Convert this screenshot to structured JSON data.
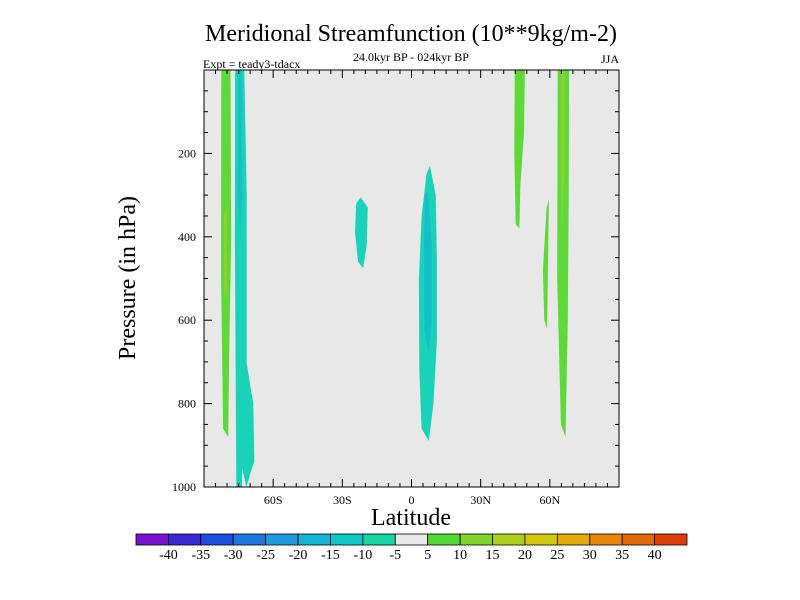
{
  "chart_data": {
    "type": "heatmap",
    "title": "Meridional Streamfunction (10**9kg/m-2)",
    "subtitle": "24.0kyr BP - 024kyr BP",
    "left_label": "Expt = teady3-tdacx",
    "right_label": "JJA",
    "xlabel": "Latitude",
    "ylabel": "Pressure (in hPa)",
    "xlim": [
      -90,
      90
    ],
    "ylim": [
      1000,
      0
    ],
    "x_ticks": [
      {
        "value": -60,
        "label": "60S"
      },
      {
        "value": -30,
        "label": "30S"
      },
      {
        "value": 0,
        "label": "0"
      },
      {
        "value": 30,
        "label": "30N"
      },
      {
        "value": 60,
        "label": "60N"
      }
    ],
    "y_ticks": [
      {
        "value": 200,
        "label": "200"
      },
      {
        "value": 400,
        "label": "400"
      },
      {
        "value": 600,
        "label": "600"
      },
      {
        "value": 800,
        "label": "800"
      },
      {
        "value": 1000,
        "label": "1000"
      }
    ],
    "background_level": "-5 to 5",
    "colorbar": {
      "levels": [
        -40,
        -35,
        -30,
        -25,
        -20,
        -15,
        -10,
        -5,
        5,
        10,
        15,
        20,
        25,
        30,
        35,
        40
      ],
      "labels": [
        "-40",
        "-35",
        "-30",
        "-25",
        "-20",
        "-15",
        "-10",
        "-5",
        "5",
        "10",
        "15",
        "20",
        "25",
        "30",
        "35",
        "40"
      ],
      "colors": [
        "#7a12cf",
        "#3a2ad6",
        "#1e4ee0",
        "#1f76e0",
        "#1f9ade",
        "#14b4d6",
        "#0cc8c8",
        "#18d4a4",
        "#e8e8e8",
        "#52d834",
        "#80d428",
        "#aed018",
        "#d4c80c",
        "#e4ac08",
        "#e68806",
        "#e46808",
        "#e03c08"
      ]
    },
    "features": [
      {
        "name": "sh-polar-positive-cell",
        "class": "5 to 10",
        "color": "#5fd83a",
        "points": [
          [
            -82.5,
            0
          ],
          [
            -78.5,
            0
          ],
          [
            -78.2,
            400
          ],
          [
            -79,
            650
          ],
          [
            -79.5,
            880
          ],
          [
            -81.7,
            860
          ],
          [
            -82.6,
            500
          ]
        ]
      },
      {
        "name": "sh-polar-inner-positive",
        "class": "10 to 15",
        "color": "#8ad42c",
        "points": [
          [
            -81.5,
            350
          ],
          [
            -80.2,
            330
          ],
          [
            -80,
            520
          ],
          [
            -81.2,
            560
          ]
        ]
      },
      {
        "name": "sh-negative-column-upper",
        "class": "-10 to -5",
        "color": "#1ad2b8",
        "points": [
          [
            -76.5,
            0
          ],
          [
            -72.5,
            0
          ],
          [
            -71.5,
            300
          ],
          [
            -71.5,
            700
          ],
          [
            -73.2,
            680
          ],
          [
            -73.5,
            1000
          ],
          [
            -76,
            1000
          ],
          [
            -76.6,
            400
          ]
        ]
      },
      {
        "name": "sh-negative-column-lower",
        "class": "-10 to -5",
        "color": "#1ad2b8",
        "points": [
          [
            -75.5,
            640
          ],
          [
            -72.8,
            660
          ],
          [
            -68.6,
            800
          ],
          [
            -68.2,
            940
          ],
          [
            -69.5,
            960
          ],
          [
            -71.6,
            1000
          ],
          [
            -74.5,
            930
          ],
          [
            -75.8,
            880
          ]
        ]
      },
      {
        "name": "sh-negative-column-core",
        "class": "-15 to -10",
        "color": "#14c0c8",
        "points": [
          [
            -75,
            0
          ],
          [
            -73.8,
            0
          ],
          [
            -73.5,
            300
          ],
          [
            -74.2,
            420
          ],
          [
            -75.2,
            300
          ]
        ]
      },
      {
        "name": "subtropical-negative-blob",
        "class": "-10 to -5",
        "color": "#1ad2b8",
        "points": [
          [
            -24,
            320
          ],
          [
            -22,
            305
          ],
          [
            -19,
            330
          ],
          [
            -19.4,
            420
          ],
          [
            -21,
            475
          ],
          [
            -23.2,
            460
          ],
          [
            -24.5,
            390
          ]
        ]
      },
      {
        "name": "equatorial-negative-cell",
        "class": "-10 to -5",
        "color": "#1ad2b8",
        "points": [
          [
            6.5,
            250
          ],
          [
            8,
            230
          ],
          [
            10.5,
            300
          ],
          [
            11,
            450
          ],
          [
            11,
            650
          ],
          [
            9.5,
            800
          ],
          [
            7.5,
            890
          ],
          [
            4.4,
            860
          ],
          [
            3.4,
            720
          ],
          [
            3.2,
            500
          ],
          [
            4.4,
            350
          ]
        ]
      },
      {
        "name": "equatorial-negative-core",
        "class": "-15 to -10",
        "color": "#14c0c8",
        "points": [
          [
            5.8,
            300
          ],
          [
            7.2,
            290
          ],
          [
            8.8,
            420
          ],
          [
            8.8,
            600
          ],
          [
            7.4,
            680
          ],
          [
            5.6,
            620
          ],
          [
            5.4,
            420
          ]
        ]
      },
      {
        "name": "nh-midlat-positive-upper",
        "class": "5 to 10",
        "color": "#5fd83a",
        "points": [
          [
            44.8,
            0
          ],
          [
            49.2,
            0
          ],
          [
            48.8,
            150
          ],
          [
            47.2,
            280
          ],
          [
            46.8,
            380
          ],
          [
            45.2,
            370
          ],
          [
            44.6,
            200
          ]
        ]
      },
      {
        "name": "nh-midlat-positive-lower",
        "class": "5 to 10",
        "color": "#5fd83a",
        "points": [
          [
            58.6,
            330
          ],
          [
            59.6,
            310
          ],
          [
            59.2,
            460
          ],
          [
            58.8,
            620
          ],
          [
            57.6,
            600
          ],
          [
            57,
            480
          ]
        ]
      },
      {
        "name": "nh-polar-positive-cell",
        "class": "5 to 10",
        "color": "#5fd83a",
        "points": [
          [
            63.4,
            0
          ],
          [
            68.4,
            0
          ],
          [
            68.2,
            300
          ],
          [
            67.8,
            600
          ],
          [
            66.8,
            880
          ],
          [
            64.8,
            850
          ],
          [
            63.2,
            500
          ]
        ]
      },
      {
        "name": "nh-polar-inner-positive",
        "class": "10 to 15",
        "color": "#8ad42c",
        "points": [
          [
            64.8,
            0
          ],
          [
            66.4,
            0
          ],
          [
            66.3,
            240
          ],
          [
            65.4,
            380
          ],
          [
            64.8,
            220
          ]
        ]
      }
    ]
  }
}
